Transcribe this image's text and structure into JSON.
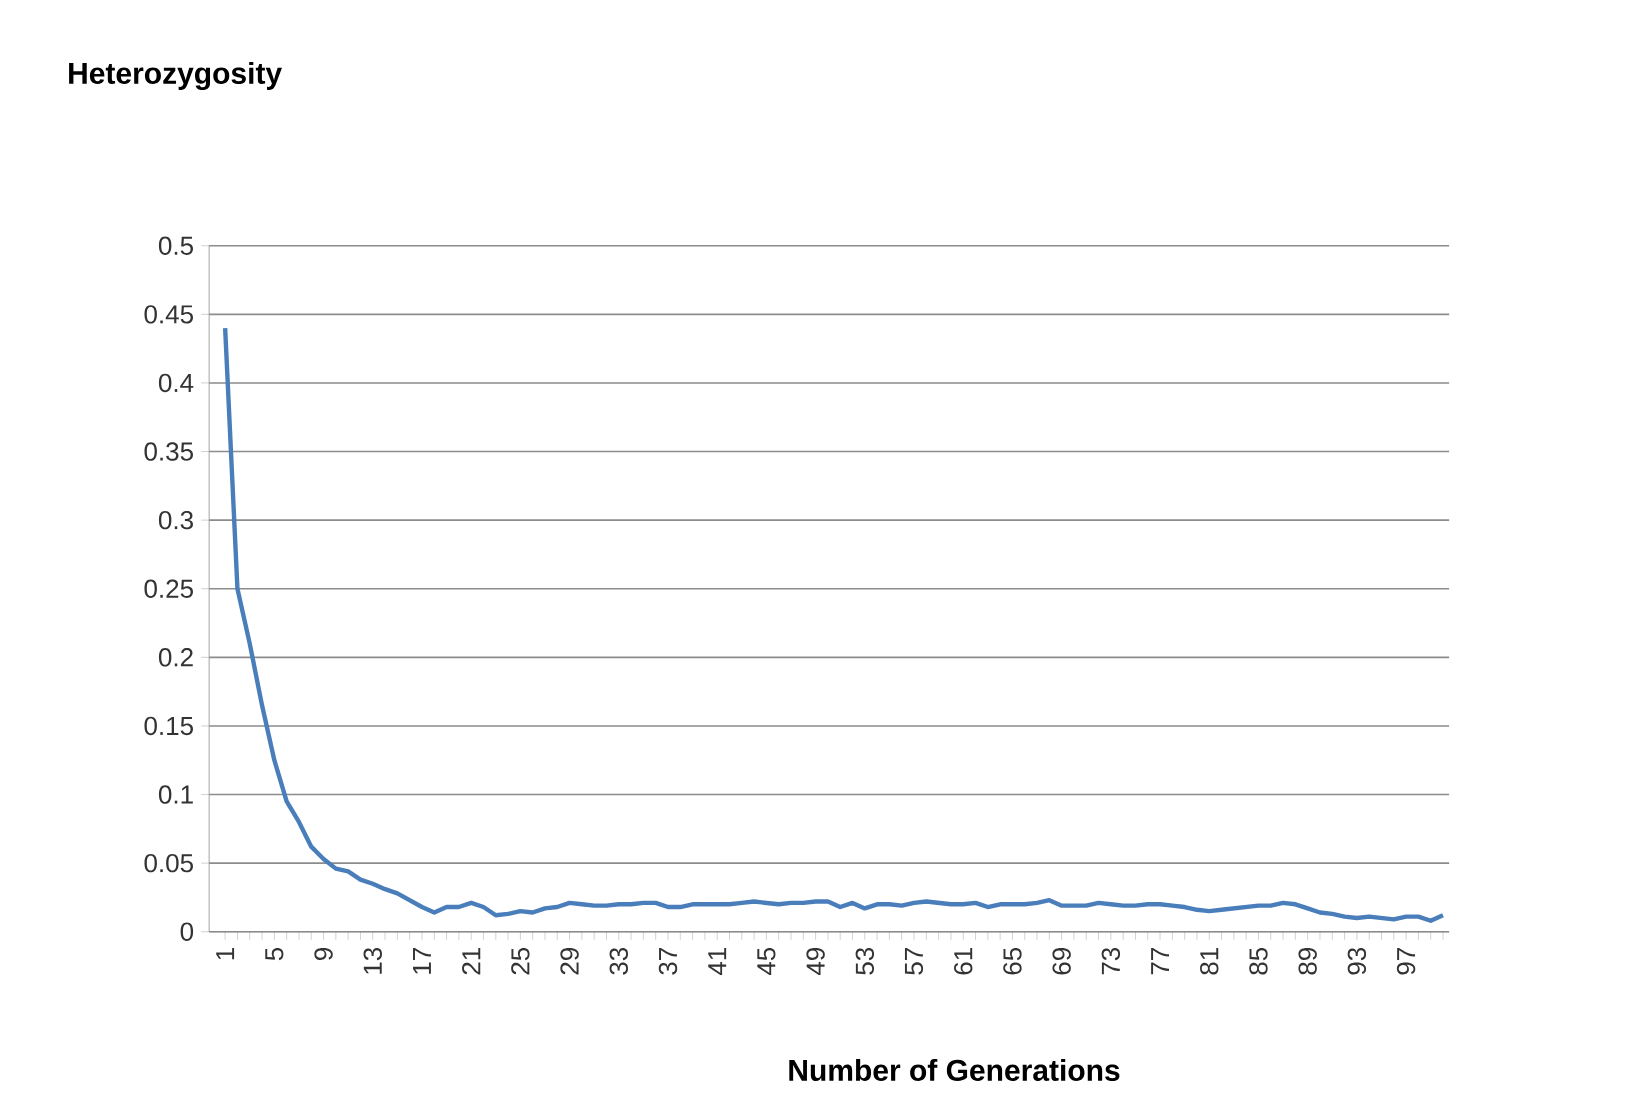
{
  "chart_data": {
    "type": "line",
    "xlabel": "Number of Generations",
    "ylabel": "Heterozygosity",
    "categories": [
      "1",
      null,
      null,
      null,
      "5",
      null,
      null,
      null,
      "9",
      null,
      null,
      null,
      "13",
      null,
      null,
      null,
      "17",
      null,
      null,
      null,
      "21",
      null,
      null,
      null,
      "25",
      null,
      null,
      null,
      "29",
      null,
      null,
      null,
      "33",
      null,
      null,
      null,
      "37",
      null,
      null,
      null,
      "41",
      null,
      null,
      null,
      "45",
      null,
      null,
      null,
      "49",
      null,
      null,
      null,
      "53",
      null,
      null,
      null,
      "57",
      null,
      null,
      null,
      "61",
      null,
      null,
      null,
      "65",
      null,
      null,
      null,
      "69",
      null,
      null,
      null,
      "73",
      null,
      null,
      null,
      "77",
      null,
      null,
      null,
      "81",
      null,
      null,
      null,
      "85",
      null,
      null,
      null,
      "89",
      null,
      null,
      null,
      "93",
      null,
      null,
      null,
      "97",
      null,
      null,
      null
    ],
    "series": [
      {
        "color": "#4a7ebb",
        "values": [
          0.44,
          0.25,
          0.21,
          0.165,
          0.125,
          0.095,
          0.08,
          0.062,
          0.053,
          0.046,
          0.044,
          0.038,
          0.035,
          0.031,
          0.028,
          0.023,
          0.018,
          0.014,
          0.018,
          0.018,
          0.021,
          0.018,
          0.012,
          0.013,
          0.015,
          0.014,
          0.017,
          0.018,
          0.021,
          0.02,
          0.019,
          0.019,
          0.02,
          0.02,
          0.021,
          0.021,
          0.018,
          0.018,
          0.02,
          0.02,
          0.02,
          0.02,
          0.021,
          0.022,
          0.021,
          0.02,
          0.021,
          0.021,
          0.022,
          0.022,
          0.018,
          0.021,
          0.017,
          0.02,
          0.02,
          0.019,
          0.021,
          0.022,
          0.021,
          0.02,
          0.02,
          0.021,
          0.018,
          0.02,
          0.02,
          0.02,
          0.021,
          0.023,
          0.019,
          0.019,
          0.019,
          0.021,
          0.02,
          0.019,
          0.019,
          0.02,
          0.02,
          0.019,
          0.018,
          0.016,
          0.015,
          0.016,
          0.017,
          0.018,
          0.019,
          0.019,
          0.021,
          0.02,
          0.017,
          0.014,
          0.013,
          0.011,
          0.01,
          0.011,
          0.01,
          0.009,
          0.011,
          0.011,
          0.008,
          0.012
        ]
      }
    ],
    "ylim": [
      0,
      0.5
    ],
    "yticks": [
      0,
      0.05,
      0.1,
      0.15,
      0.2,
      0.25,
      0.3,
      0.35,
      0.4,
      0.45,
      0.5
    ],
    "grid": "y"
  }
}
